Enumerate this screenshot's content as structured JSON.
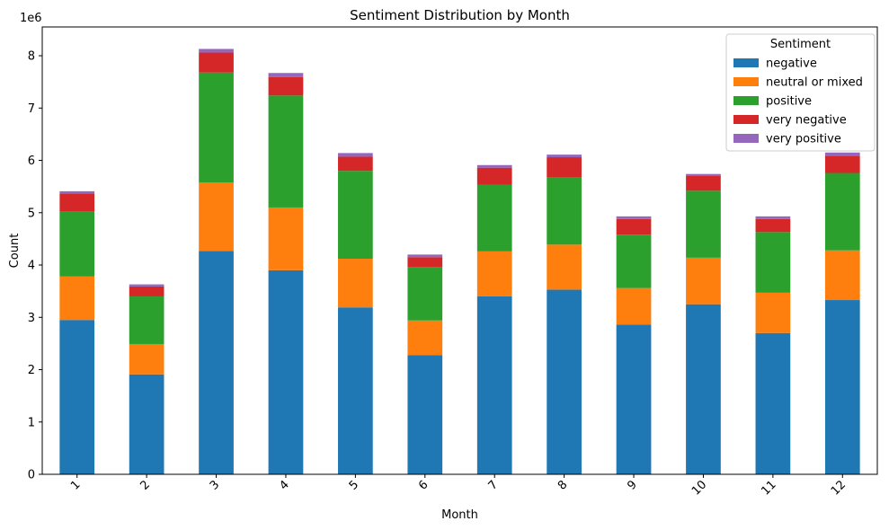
{
  "chart_data": {
    "type": "bar",
    "stacked": true,
    "title": "Sentiment Distribution by Month",
    "xlabel": "Month",
    "ylabel": "Count",
    "y_multiplier_label": "1e6",
    "ylim": [
      0,
      8.55
    ],
    "yticks": [
      0,
      1,
      2,
      3,
      4,
      5,
      6,
      7,
      8
    ],
    "categories": [
      "1",
      "2",
      "3",
      "4",
      "5",
      "6",
      "7",
      "8",
      "9",
      "10",
      "11",
      "12"
    ],
    "series": [
      {
        "name": "negative",
        "color": "#1f77b4",
        "values": [
          2.95,
          1.91,
          4.27,
          3.9,
          3.19,
          2.28,
          3.4,
          3.53,
          2.86,
          3.25,
          2.7,
          3.33
        ]
      },
      {
        "name": "neutral or mixed",
        "color": "#ff7f0e",
        "values": [
          0.83,
          0.58,
          1.31,
          1.2,
          0.93,
          0.66,
          0.86,
          0.86,
          0.7,
          0.89,
          0.77,
          0.95
        ]
      },
      {
        "name": "positive",
        "color": "#2ca02c",
        "values": [
          1.25,
          0.91,
          2.1,
          2.14,
          1.68,
          1.02,
          1.27,
          1.28,
          1.02,
          1.28,
          1.16,
          1.48
        ]
      },
      {
        "name": "very negative",
        "color": "#d62728",
        "values": [
          0.34,
          0.19,
          0.38,
          0.35,
          0.27,
          0.19,
          0.33,
          0.39,
          0.3,
          0.28,
          0.25,
          0.33
        ]
      },
      {
        "name": "very positive",
        "color": "#9467bd",
        "values": [
          0.04,
          0.04,
          0.07,
          0.08,
          0.07,
          0.05,
          0.05,
          0.05,
          0.05,
          0.04,
          0.05,
          0.06
        ]
      }
    ],
    "legend": {
      "title": "Sentiment",
      "position": "top-right"
    },
    "grid": false
  }
}
